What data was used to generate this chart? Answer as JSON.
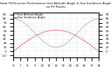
{
  "title": "Solar PV/Inverter Performance Sun Altitude Angle & Sun Incidence Angle on PV Panels",
  "blue_label": "Sun Altitude Angle",
  "red_label": "Sun Incidence Angle",
  "x_start": 6,
  "x_end": 18,
  "x_ticks": [
    6,
    7,
    8,
    9,
    10,
    11,
    12,
    13,
    14,
    15,
    16,
    17,
    18
  ],
  "y_left_ticks": [
    -10,
    0,
    10,
    20,
    30,
    40,
    50,
    60,
    70,
    80,
    90
  ],
  "y_right_ticks": [
    0,
    10,
    20,
    30,
    40,
    50,
    60,
    70,
    80,
    90
  ],
  "ylim": [
    -15,
    95
  ],
  "background_color": "#ffffff",
  "grid_color": "#b0b0b0",
  "blue_color": "#0000cc",
  "red_color": "#cc0000",
  "title_fontsize": 3.2,
  "tick_fontsize": 3.0,
  "legend_fontsize": 2.8
}
